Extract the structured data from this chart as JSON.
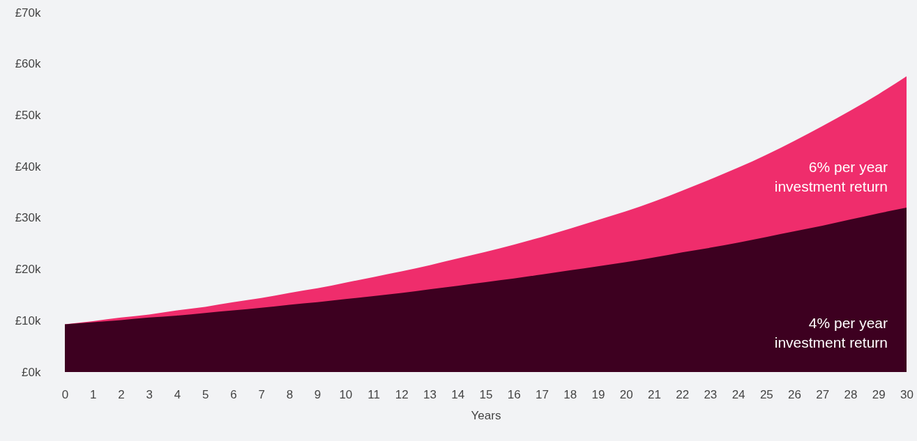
{
  "chart_data": {
    "type": "area",
    "xlabel": "Years",
    "x": [
      0,
      1,
      2,
      3,
      4,
      5,
      6,
      7,
      8,
      9,
      10,
      11,
      12,
      13,
      14,
      15,
      16,
      17,
      18,
      19,
      20,
      21,
      22,
      23,
      24,
      25,
      26,
      27,
      28,
      29,
      30
    ],
    "series": [
      {
        "name": "6% per year\ninvestment return",
        "color": "#ef2d6c",
        "values": [
          9.3,
          9.9,
          10.6,
          11.2,
          12.0,
          12.7,
          13.6,
          14.4,
          15.4,
          16.3,
          17.4,
          18.5,
          19.6,
          20.8,
          22.1,
          23.4,
          24.8,
          26.3,
          27.9,
          29.6,
          31.3,
          33.2,
          35.3,
          37.5,
          39.8,
          42.3,
          45.0,
          47.9,
          50.9,
          54.1,
          57.6
        ]
      },
      {
        "name": "4% per year\ninvestment return",
        "color": "#3d0020",
        "values": [
          9.3,
          9.7,
          10.1,
          10.6,
          11.0,
          11.5,
          12.0,
          12.5,
          13.1,
          13.6,
          14.2,
          14.8,
          15.4,
          16.1,
          16.8,
          17.5,
          18.2,
          19.0,
          19.8,
          20.6,
          21.4,
          22.3,
          23.3,
          24.2,
          25.2,
          26.3,
          27.4,
          28.5,
          29.7,
          30.9,
          32.0
        ]
      }
    ],
    "xlim": [
      0,
      30
    ],
    "xticks": [
      0,
      1,
      2,
      3,
      4,
      5,
      6,
      7,
      8,
      9,
      10,
      11,
      12,
      13,
      14,
      15,
      16,
      17,
      18,
      19,
      20,
      21,
      22,
      23,
      24,
      25,
      26,
      27,
      28,
      29,
      30
    ],
    "ylim": [
      0,
      70
    ],
    "yticks": [
      {
        "value": 0,
        "label": "£0k"
      },
      {
        "value": 10,
        "label": "£10k"
      },
      {
        "value": 20,
        "label": "£20k"
      },
      {
        "value": 30,
        "label": "£30k"
      },
      {
        "value": 40,
        "label": "£40k"
      },
      {
        "value": 50,
        "label": "£50k"
      },
      {
        "value": 60,
        "label": "£60k"
      },
      {
        "value": 70,
        "label": "£70k"
      }
    ],
    "grid": false
  }
}
